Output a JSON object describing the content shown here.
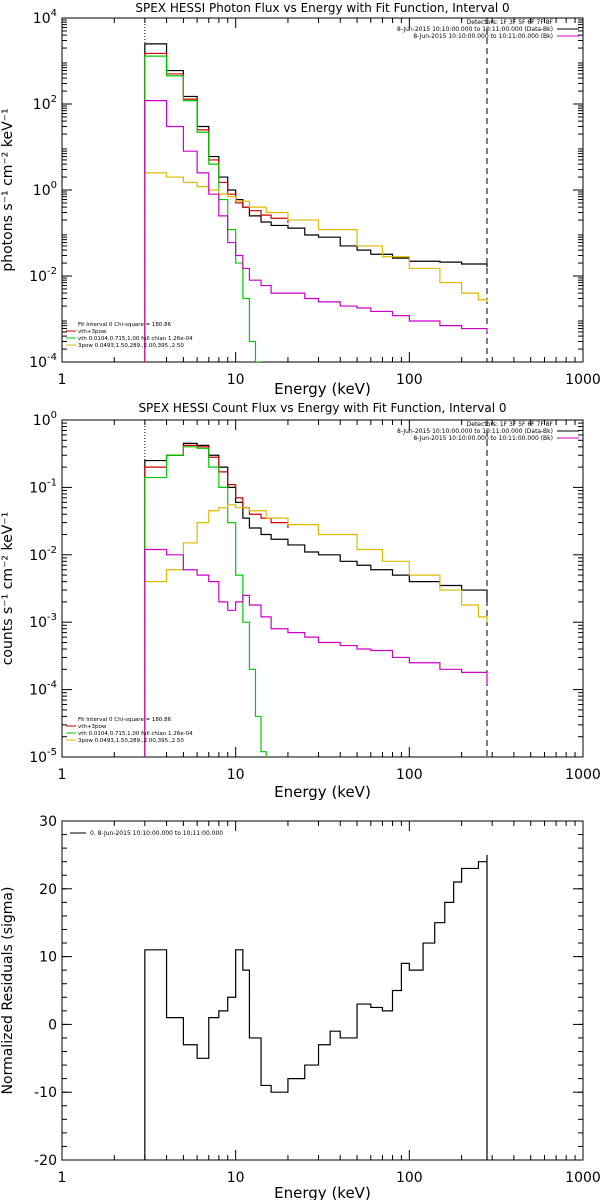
{
  "chart_data": [
    {
      "type": "line",
      "title": "SPEX HESSI Photon Flux vs Energy with Fit Function, Interval 0",
      "xlabel": "Energy (keV)",
      "ylabel": "photons s⁻¹ cm⁻² keV⁻¹",
      "x_scale": "log",
      "y_scale": "log",
      "xlim": [
        1,
        1000
      ],
      "ylim": [
        0.0001,
        10000
      ],
      "x_ticks": [
        {
          "v": 1,
          "label": "1"
        },
        {
          "v": 10,
          "label": "10"
        },
        {
          "v": 100,
          "label": "100"
        },
        {
          "v": 1000,
          "label": "1000"
        }
      ],
      "y_ticks": [
        {
          "v": 0.0001,
          "b": "10",
          "e": "-4"
        },
        {
          "v": 0.01,
          "b": "10",
          "e": "-2"
        },
        {
          "v": 1,
          "b": "10",
          "e": "0"
        },
        {
          "v": 100,
          "b": "10",
          "e": "2"
        },
        {
          "v": 10000,
          "b": "10",
          "e": "4"
        }
      ],
      "vlines": [
        {
          "x": 3,
          "style": "dotted",
          "color": "#000000"
        },
        {
          "x": 280,
          "style": "dashed",
          "color": "#000000"
        }
      ],
      "legend_top": [
        "Detectors: 1F 3F 5F 6F 7F 8F",
        "8-Jun-2015 10:10:00.000 to 10:11:00.000 (Data-Bk)",
        "8-Jun-2015 10:10:00.000 to 10:11:00.000 (Bk)"
      ],
      "legend_top_colors": [
        "",
        "#000000",
        "#cc00cc"
      ],
      "legend_bottom": [
        "Fit Interval 0   Chi-square = 180.86",
        "vth+3pow",
        "vth 0.0104,0.715,1.00  full chian 1.26e-04",
        "3pow 0.0493,1.50,289.,2.00,395.,2.50"
      ],
      "legend_bottom_colors": [
        "",
        "#cc0000",
        "#00cc00",
        "#ddbb00"
      ],
      "series": [
        {
          "name": "8-Jun-2015 10:10:00.000 to 10:11:00.000 (Data-Bk)",
          "color": "#000000",
          "x": [
            3,
            4,
            5,
            6,
            7,
            8,
            9,
            10,
            11,
            12,
            14,
            16,
            20,
            25,
            30,
            40,
            50,
            60,
            80,
            100,
            150,
            200,
            280
          ],
          "y": [
            2500,
            600,
            150,
            30,
            6,
            2.0,
            1.0,
            0.6,
            0.4,
            0.25,
            0.18,
            0.15,
            0.13,
            0.09,
            0.08,
            0.05,
            0.04,
            0.032,
            0.026,
            0.022,
            0.021,
            0.019,
            0.016
          ]
        },
        {
          "name": "vth+3pow",
          "color": "#cc0000",
          "x": [
            3,
            4,
            5,
            6,
            7,
            8,
            9,
            10,
            11,
            12,
            14,
            16,
            20
          ],
          "y": [
            1500,
            500,
            130,
            25,
            5,
            1.5,
            0.8,
            0.5,
            0.4,
            0.33,
            0.26,
            0.22,
            0.17
          ]
        },
        {
          "name": "vth",
          "color": "#00cc00",
          "x": [
            3,
            4,
            5,
            6,
            7,
            8,
            9,
            10,
            11,
            12,
            13,
            14
          ],
          "y": [
            1300,
            450,
            120,
            22,
            4,
            0.6,
            0.12,
            0.02,
            0.003,
            0.0003,
            0.0001,
            0.0001
          ]
        },
        {
          "name": "3pow",
          "color": "#ddbb00",
          "x": [
            3,
            4,
            5,
            6,
            7,
            8,
            9,
            10,
            12,
            15,
            20,
            30,
            50,
            70,
            100,
            150,
            200,
            250,
            280
          ],
          "y": [
            2.5,
            2.0,
            1.5,
            1.2,
            1.0,
            0.8,
            0.7,
            0.55,
            0.4,
            0.3,
            0.2,
            0.12,
            0.05,
            0.028,
            0.015,
            0.007,
            0.004,
            0.0028,
            0.0025
          ]
        },
        {
          "name": "8-Jun-2015 10:10:00.000 to 10:11:00.000 (Bk)",
          "color": "#cc00cc",
          "x": [
            3,
            4,
            5,
            6,
            7,
            8,
            9,
            10,
            11,
            12,
            14,
            16,
            20,
            25,
            30,
            40,
            50,
            60,
            80,
            100,
            150,
            200,
            280
          ],
          "y": [
            120,
            30,
            8,
            2.5,
            0.8,
            0.25,
            0.06,
            0.03,
            0.015,
            0.008,
            0.006,
            0.004,
            0.004,
            0.003,
            0.0025,
            0.002,
            0.0018,
            0.0015,
            0.0012,
            0.0009,
            0.0007,
            0.0006,
            0.0005
          ]
        }
      ]
    },
    {
      "type": "line",
      "title": "SPEX HESSI Count Flux vs Energy with Fit Function, Interval 0",
      "xlabel": "Energy (keV)",
      "ylabel": "counts s⁻¹ cm⁻² keV⁻¹",
      "x_scale": "log",
      "y_scale": "log",
      "xlim": [
        1,
        1000
      ],
      "ylim": [
        1e-05,
        1
      ],
      "x_ticks": [
        {
          "v": 1,
          "label": "1"
        },
        {
          "v": 10,
          "label": "10"
        },
        {
          "v": 100,
          "label": "100"
        },
        {
          "v": 1000,
          "label": "1000"
        }
      ],
      "y_ticks": [
        {
          "v": 1e-05,
          "b": "10",
          "e": "-5"
        },
        {
          "v": 0.0001,
          "b": "10",
          "e": "-4"
        },
        {
          "v": 0.001,
          "b": "10",
          "e": "-3"
        },
        {
          "v": 0.01,
          "b": "10",
          "e": "-2"
        },
        {
          "v": 0.1,
          "b": "10",
          "e": "-1"
        },
        {
          "v": 1,
          "b": "10",
          "e": "0"
        }
      ],
      "vlines": [
        {
          "x": 3,
          "style": "dotted",
          "color": "#000000"
        },
        {
          "x": 280,
          "style": "dashed",
          "color": "#000000"
        }
      ],
      "legend_top": [
        "Detectors: 1F 3F 5F 6F 7F 8F",
        "8-Jun-2015 10:10:00.000 to 10:11:00.000 (Data-Bk)",
        "8-Jun-2015 10:10:00.000 to 10:11:00.000 (Bk)"
      ],
      "legend_top_colors": [
        "",
        "#000000",
        "#cc00cc"
      ],
      "legend_bottom": [
        "Fit Interval 0   Chi-square = 180.86",
        "vth+3pow",
        "vth 0.0104,0.715,1.00  full chian 1.26e-04",
        "3pow 0.0493,1.50,289.,2.00,395.,2.50"
      ],
      "legend_bottom_colors": [
        "",
        "#cc0000",
        "#00cc00",
        "#ddbb00"
      ],
      "series": [
        {
          "name": "8-Jun-2015 10:10:00.000 to 10:11:00.000 (Data-Bk)",
          "color": "#000000",
          "x": [
            3,
            4,
            5,
            6,
            7,
            8,
            9,
            10,
            11,
            12,
            14,
            16,
            20,
            25,
            30,
            40,
            50,
            60,
            80,
            100,
            150,
            200,
            280
          ],
          "y": [
            0.25,
            0.3,
            0.45,
            0.42,
            0.3,
            0.2,
            0.1,
            0.06,
            0.035,
            0.025,
            0.02,
            0.017,
            0.014,
            0.011,
            0.01,
            0.008,
            0.007,
            0.006,
            0.005,
            0.004,
            0.0035,
            0.003,
            0.002
          ]
        },
        {
          "name": "vth+3pow",
          "color": "#cc0000",
          "x": [
            3,
            4,
            5,
            6,
            7,
            8,
            9,
            10,
            11,
            12,
            14,
            16,
            20
          ],
          "y": [
            0.2,
            0.3,
            0.42,
            0.4,
            0.28,
            0.17,
            0.11,
            0.07,
            0.05,
            0.04,
            0.035,
            0.03,
            0.025
          ]
        },
        {
          "name": "vth",
          "color": "#00cc00",
          "x": [
            3,
            4,
            5,
            6,
            7,
            8,
            9,
            10,
            11,
            12,
            13,
            14,
            15
          ],
          "y": [
            0.14,
            0.3,
            0.4,
            0.38,
            0.2,
            0.1,
            0.03,
            0.005,
            0.001,
            0.0002,
            4e-05,
            1.2e-05,
            1e-05
          ]
        },
        {
          "name": "3pow",
          "color": "#ddbb00",
          "x": [
            3,
            4,
            5,
            6,
            7,
            8,
            9,
            10,
            12,
            15,
            20,
            30,
            50,
            70,
            100,
            150,
            200,
            250,
            280
          ],
          "y": [
            0.004,
            0.006,
            0.015,
            0.03,
            0.045,
            0.05,
            0.055,
            0.05,
            0.045,
            0.035,
            0.028,
            0.02,
            0.012,
            0.008,
            0.005,
            0.003,
            0.0018,
            0.0012,
            0.001
          ]
        },
        {
          "name": "8-Jun-2015 10:10:00.000 to 10:11:00.000 (Bk)",
          "color": "#cc00cc",
          "x": [
            3,
            4,
            5,
            6,
            7,
            8,
            9,
            10,
            11,
            12,
            14,
            16,
            20,
            25,
            30,
            40,
            50,
            60,
            80,
            100,
            150,
            200,
            280
          ],
          "y": [
            0.012,
            0.01,
            0.006,
            0.005,
            0.004,
            0.002,
            0.0015,
            0.002,
            0.0025,
            0.0018,
            0.0012,
            0.0008,
            0.0007,
            0.0006,
            0.0005,
            0.00045,
            0.0004,
            0.00038,
            0.0003,
            0.00025,
            0.0002,
            0.00018,
            0.00012
          ]
        }
      ]
    },
    {
      "type": "line",
      "title": "",
      "xlabel": "Energy (keV)",
      "ylabel": "Normalized Residuals (sigma)",
      "x_scale": "log",
      "y_scale": "linear",
      "xlim": [
        1,
        1000
      ],
      "ylim": [
        -20,
        30
      ],
      "x_ticks": [
        {
          "v": 1,
          "label": "1"
        },
        {
          "v": 10,
          "label": "10"
        },
        {
          "v": 100,
          "label": "100"
        },
        {
          "v": 1000,
          "label": "1000"
        }
      ],
      "y_ticks": [
        {
          "v": -20,
          "label": "-20"
        },
        {
          "v": -10,
          "label": "-10"
        },
        {
          "v": 0,
          "label": "0"
        },
        {
          "v": 10,
          "label": "10"
        },
        {
          "v": 20,
          "label": "20"
        },
        {
          "v": 30,
          "label": "30"
        }
      ],
      "vlines": [],
      "legend_top": [
        "0.  8-Jun-2015 10:10:00.000 to 10:11:00.000"
      ],
      "legend_top_colors": [
        "#000000"
      ],
      "legend_bottom": [],
      "legend_bottom_colors": [],
      "series": [
        {
          "name": "0.  8-Jun-2015 10:10:00.000 to 10:11:00.000",
          "color": "#000000",
          "x": [
            3,
            4,
            5,
            6,
            7,
            8,
            9,
            10,
            11,
            12,
            14,
            16,
            18,
            20,
            25,
            30,
            35,
            40,
            50,
            60,
            70,
            80,
            90,
            100,
            120,
            140,
            160,
            180,
            200,
            250,
            280
          ],
          "y": [
            11,
            1,
            -3,
            -5,
            1,
            2,
            4,
            11,
            8,
            -2,
            -9,
            -10,
            -10,
            -8,
            -6,
            -3,
            -1,
            -2,
            3,
            2.5,
            2,
            5,
            9,
            8,
            12,
            15,
            18,
            21,
            23,
            24,
            25
          ]
        }
      ]
    }
  ]
}
